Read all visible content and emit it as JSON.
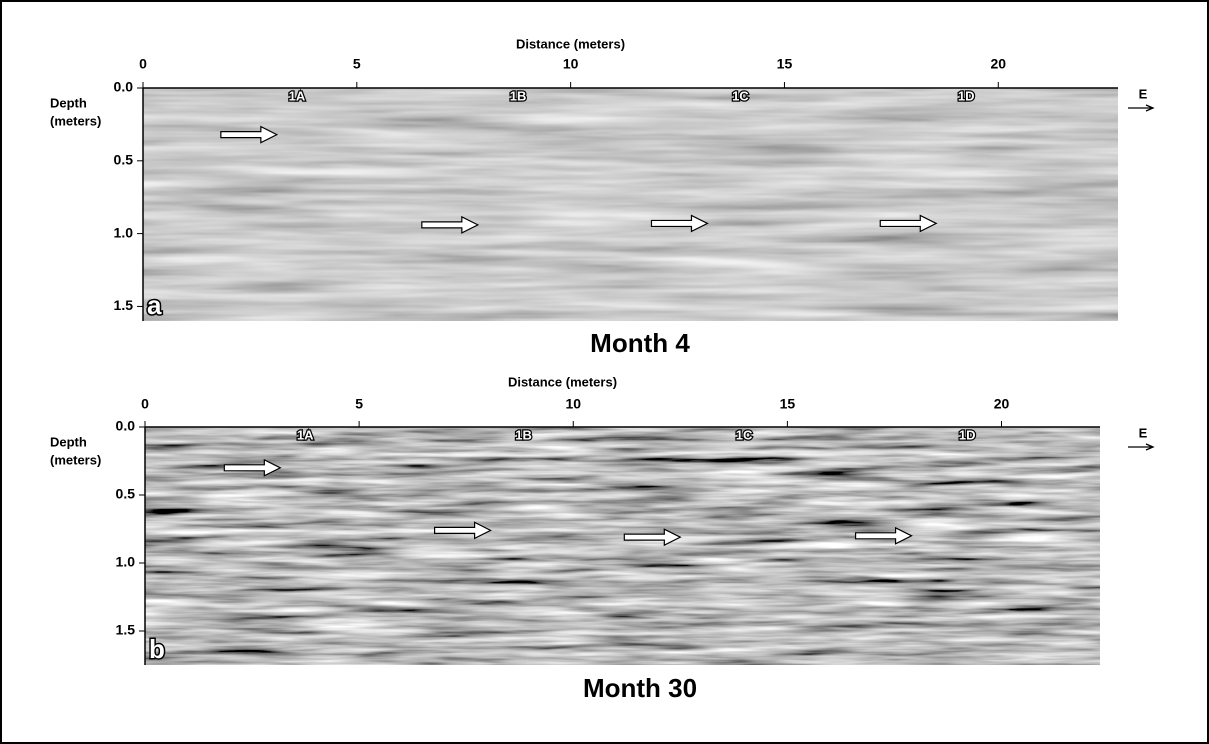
{
  "chart_data": [
    {
      "type": "radargram",
      "panel": "a",
      "title": "Month 4",
      "xlabel": "Distance (meters)",
      "ylabel": [
        "Depth",
        "(meters)"
      ],
      "direction": "E",
      "xlim": [
        0,
        22.8
      ],
      "xticks": [
        0,
        5,
        10,
        15,
        20
      ],
      "ylim": [
        0,
        1.6
      ],
      "yticks": [
        {
          "value": 0,
          "label": "0.0"
        },
        0.5,
        {
          "value": 1,
          "label": "1.0"
        },
        1.5
      ],
      "annotations": [
        {
          "text": "1A",
          "x": 3.6
        },
        {
          "text": "1B",
          "x": 8.77
        },
        {
          "text": "1C",
          "x": 13.97
        },
        {
          "text": "1D",
          "x": 19.25
        }
      ],
      "arrows": [
        {
          "x": 3.13,
          "y": 0.32
        },
        {
          "x": 7.83,
          "y": 0.94
        },
        {
          "x": 13.2,
          "y": 0.93
        },
        {
          "x": 18.55,
          "y": 0.93
        }
      ]
    },
    {
      "type": "radargram",
      "panel": "b",
      "title": "Month 30",
      "xlabel": "Distance (meters)",
      "ylabel": [
        "Depth",
        "(meters)"
      ],
      "direction": "E",
      "xlim": [
        0,
        22.3
      ],
      "xticks": [
        0,
        5,
        10,
        15,
        20
      ],
      "ylim": [
        0,
        1.75
      ],
      "yticks": [
        {
          "value": 0,
          "label": "0.0"
        },
        0.5,
        {
          "value": 1,
          "label": "1.0"
        },
        1.5
      ],
      "annotations": [
        {
          "text": "1A",
          "x": 3.74
        },
        {
          "text": "1B",
          "x": 8.84
        },
        {
          "text": "1C",
          "x": 13.99
        },
        {
          "text": "1D",
          "x": 19.2
        }
      ],
      "arrows": [
        {
          "x": 3.16,
          "y": 0.3
        },
        {
          "x": 8.07,
          "y": 0.76
        },
        {
          "x": 12.5,
          "y": 0.81
        },
        {
          "x": 17.9,
          "y": 0.8
        }
      ]
    }
  ]
}
